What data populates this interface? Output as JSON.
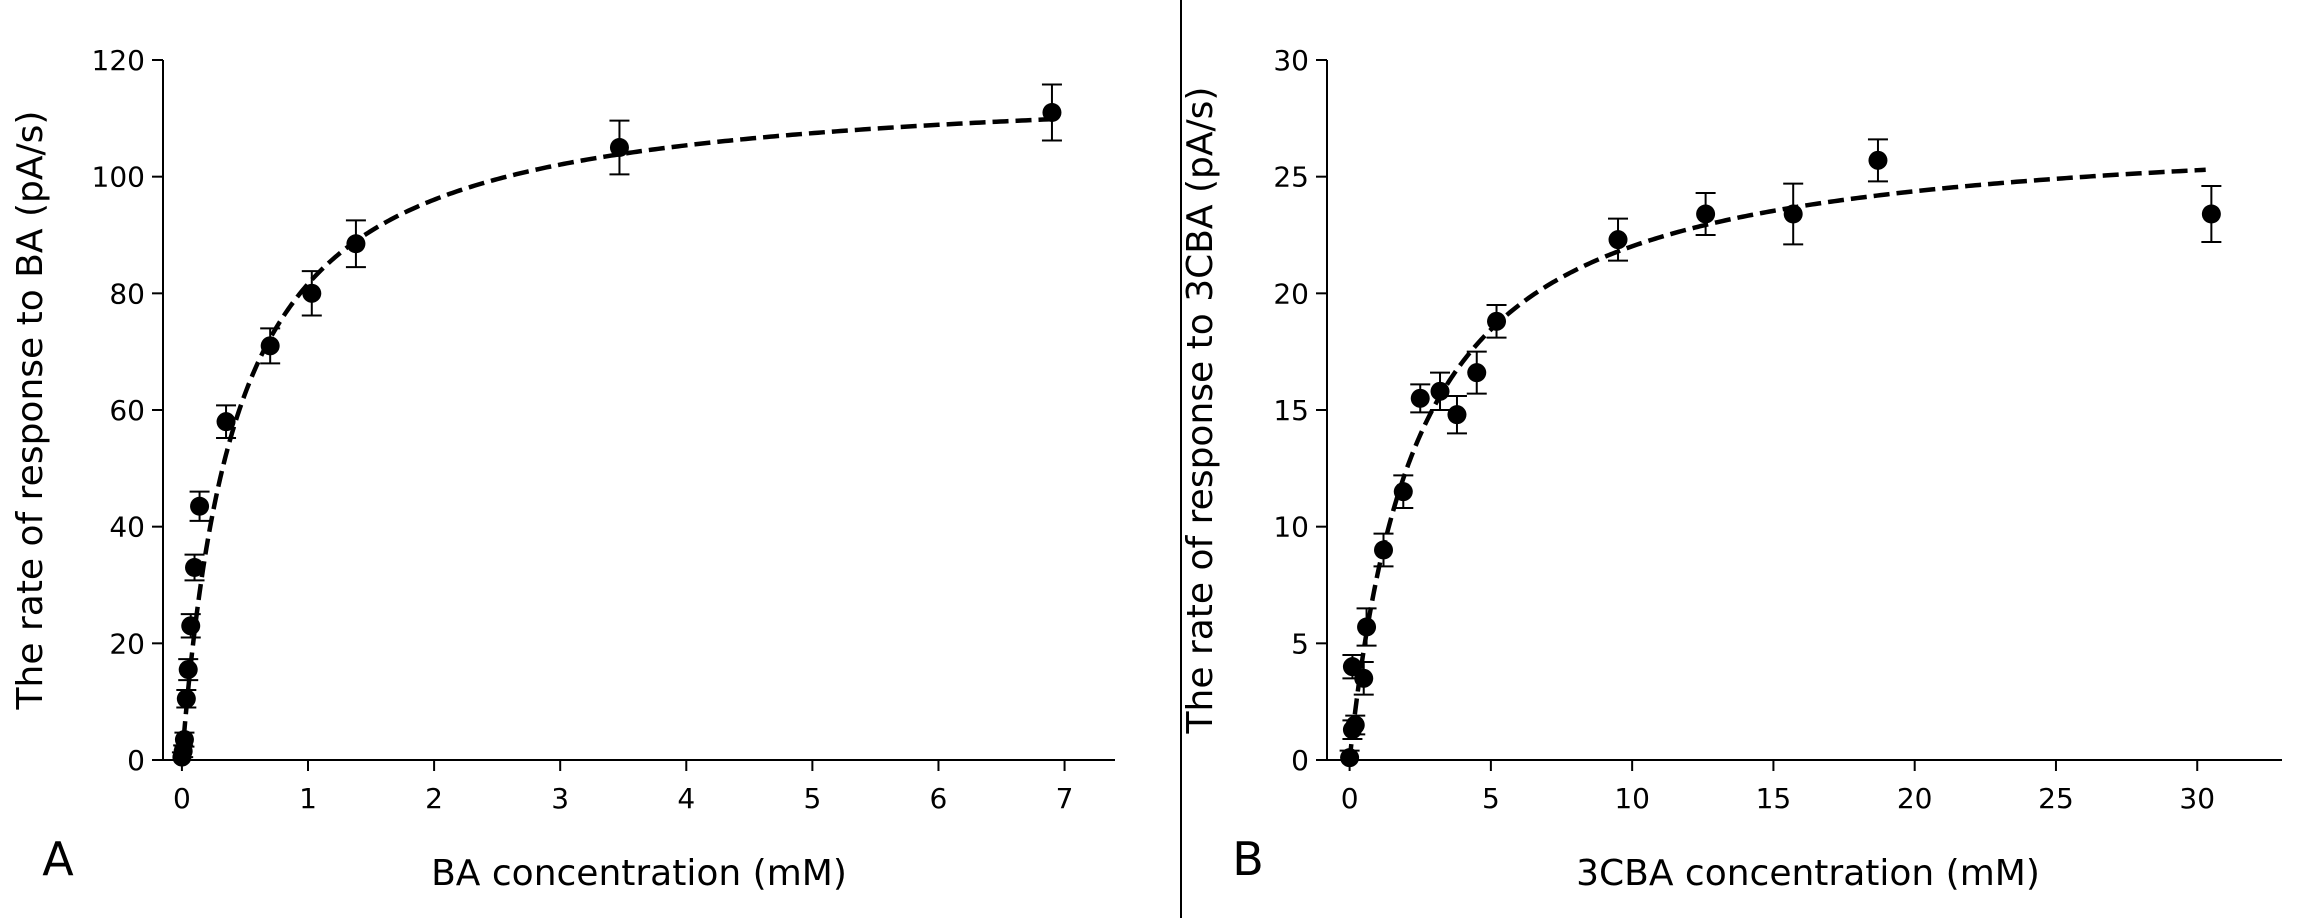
{
  "chart_data": [
    {
      "type": "scatter",
      "panel": "A",
      "xlabel": "BA concentration (mM)",
      "ylabel": "The rate of response to BA (pA/s)",
      "xlim": [
        -0.15,
        7.4
      ],
      "ylim": [
        0,
        120
      ],
      "xticks": [
        0,
        1,
        2,
        3,
        4,
        5,
        6,
        7
      ],
      "yticks": [
        0,
        20,
        40,
        60,
        80,
        100,
        120
      ],
      "grid": false,
      "series": [
        {
          "points": [
            {
              "x": 0.0,
              "y": 0.5,
              "err": 0.8
            },
            {
              "x": 0.01,
              "y": 1.5,
              "err": 1.0
            },
            {
              "x": 0.02,
              "y": 3.5,
              "err": 1.2
            },
            {
              "x": 0.035,
              "y": 10.5,
              "err": 1.5
            },
            {
              "x": 0.05,
              "y": 15.5,
              "err": 1.8
            },
            {
              "x": 0.07,
              "y": 23.0,
              "err": 2.0
            },
            {
              "x": 0.1,
              "y": 33.0,
              "err": 2.2
            },
            {
              "x": 0.14,
              "y": 43.5,
              "err": 2.5
            },
            {
              "x": 0.35,
              "y": 58.0,
              "err": 2.8
            },
            {
              "x": 0.7,
              "y": 71.0,
              "err": 3.0
            },
            {
              "x": 1.03,
              "y": 80.0,
              "err": 3.8
            },
            {
              "x": 1.38,
              "y": 88.5,
              "err": 4.0
            },
            {
              "x": 3.47,
              "y": 105.0,
              "err": 4.6
            },
            {
              "x": 6.9,
              "y": 111.0,
              "err": 4.8
            }
          ]
        }
      ],
      "fit": {
        "vmax": 116.7,
        "km": 0.43,
        "x_start": 0.0,
        "x_end": 6.9
      }
    },
    {
      "type": "scatter",
      "panel": "B",
      "xlabel": "3CBA concentration (mM)",
      "ylabel": "The rate of response to 3CBA (pA/s)",
      "xlim": [
        -0.8,
        33.0
      ],
      "ylim": [
        0,
        30
      ],
      "xticks": [
        0,
        5,
        10,
        15,
        20,
        25,
        30
      ],
      "yticks": [
        0,
        5,
        10,
        15,
        20,
        25,
        30
      ],
      "grid": false,
      "series": [
        {
          "points": [
            {
              "x": 0.0,
              "y": 0.1,
              "err": 0.3
            },
            {
              "x": 0.1,
              "y": 1.3,
              "err": 0.4
            },
            {
              "x": 0.2,
              "y": 1.5,
              "err": 0.4
            },
            {
              "x": 0.1,
              "y": 4.0,
              "err": 0.5
            },
            {
              "x": 0.5,
              "y": 3.5,
              "err": 0.7
            },
            {
              "x": 0.6,
              "y": 5.7,
              "err": 0.8
            },
            {
              "x": 1.2,
              "y": 9.0,
              "err": 0.7
            },
            {
              "x": 1.9,
              "y": 11.5,
              "err": 0.7
            },
            {
              "x": 2.5,
              "y": 15.5,
              "err": 0.6
            },
            {
              "x": 3.2,
              "y": 15.8,
              "err": 0.8
            },
            {
              "x": 3.8,
              "y": 14.8,
              "err": 0.8
            },
            {
              "x": 4.5,
              "y": 16.6,
              "err": 0.9
            },
            {
              "x": 5.2,
              "y": 18.8,
              "err": 0.7
            },
            {
              "x": 9.5,
              "y": 22.3,
              "err": 0.9
            },
            {
              "x": 12.6,
              "y": 23.4,
              "err": 0.9
            },
            {
              "x": 15.7,
              "y": 23.4,
              "err": 1.3
            },
            {
              "x": 18.7,
              "y": 25.7,
              "err": 0.9
            },
            {
              "x": 30.5,
              "y": 23.4,
              "err": 1.2
            }
          ]
        }
      ],
      "fit": {
        "vmax": 27.3,
        "km": 2.4,
        "x_start": 0.0,
        "x_end": 30.3
      }
    }
  ]
}
